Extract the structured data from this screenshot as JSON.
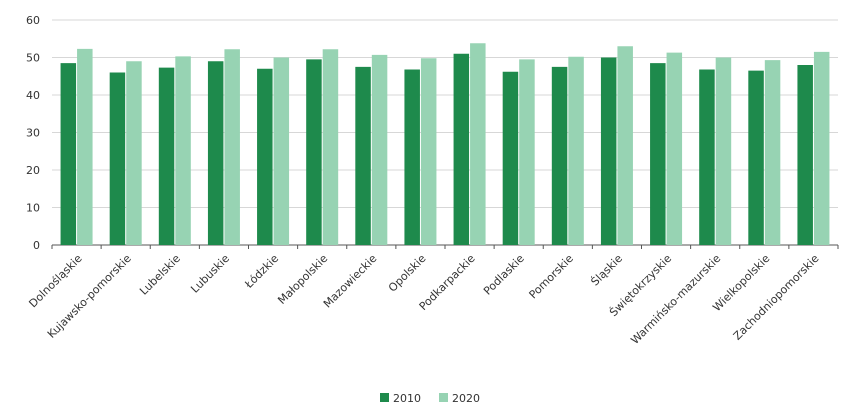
{
  "chart_data": {
    "type": "bar",
    "title": "",
    "xlabel": "",
    "ylabel": "",
    "ylim": [
      0,
      60
    ],
    "yticks": [
      0,
      10,
      20,
      30,
      40,
      50,
      60
    ],
    "grid": true,
    "legend_position": "bottom",
    "categories": [
      "Dolnośląskie",
      "Kujawsko-pomorskie",
      "Lubelskie",
      "Lubuskie",
      "Łódzkie",
      "Małopolskie",
      "Mazowieckie",
      "Opolskie",
      "Podkarpackie",
      "Podlaskie",
      "Pomorskie",
      "Śląskie",
      "Świętokrzyskie",
      "Warmińsko-mazurskie",
      "Wielkopolskie",
      "Zachodniopomorskie"
    ],
    "series": [
      {
        "name": "2010",
        "color": "#1e8a4c",
        "values": [
          48.5,
          46.0,
          47.3,
          49.0,
          47.0,
          49.5,
          47.5,
          46.8,
          51.0,
          46.2,
          47.5,
          50.0,
          48.5,
          46.8,
          46.5,
          48.0
        ]
      },
      {
        "name": "2020",
        "color": "#97d3b3",
        "values": [
          52.3,
          49.0,
          50.3,
          52.2,
          50.0,
          52.2,
          50.7,
          49.8,
          53.8,
          49.5,
          50.2,
          53.0,
          51.3,
          50.0,
          49.3,
          51.5
        ]
      }
    ]
  }
}
